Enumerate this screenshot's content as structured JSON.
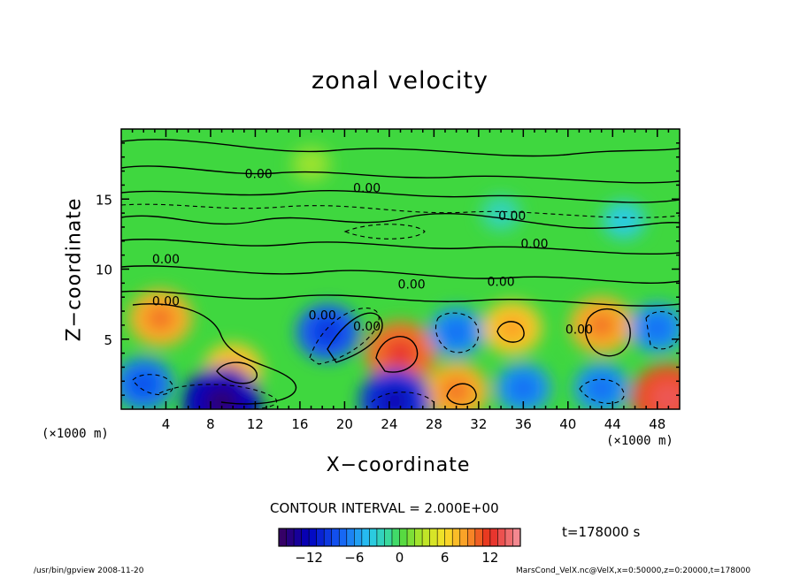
{
  "chart_data": {
    "type": "heatmap",
    "title": "zonal velocity",
    "xlabel": "X−coordinate",
    "ylabel": "Z−coordinate",
    "x_unit": "(×1000 m)",
    "y_unit": "(×1000 m)",
    "xlim": [
      0,
      50
    ],
    "ylim": [
      0,
      20
    ],
    "x_ticks": [
      4,
      8,
      12,
      16,
      20,
      24,
      28,
      32,
      36,
      40,
      44,
      48
    ],
    "y_ticks": [
      5,
      10,
      15
    ],
    "contour_labels": [
      "0.00",
      "0.00",
      "0.00",
      "0.00",
      "0.00",
      "0.00",
      "0.00",
      "0.00",
      "0.00",
      "0.00",
      "0.00"
    ],
    "contour_interval": "CONTOUR INTERVAL = 2.000E+00",
    "colorbar": {
      "ticks": [
        -12,
        -6,
        0,
        6,
        12
      ],
      "range": [
        -16,
        16
      ]
    },
    "time_label": "t=178000 s",
    "features": [
      {
        "x": 3.5,
        "z": 6.5,
        "value": 8
      },
      {
        "x": 10,
        "z": 2.8,
        "value": 7
      },
      {
        "x": 18.5,
        "z": 5.5,
        "value": -8
      },
      {
        "x": 25,
        "z": 4,
        "value": 10
      },
      {
        "x": 30,
        "z": 1.3,
        "value": 8
      },
      {
        "x": 30,
        "z": 5.5,
        "value": -6
      },
      {
        "x": 35,
        "z": 5.8,
        "value": 7
      },
      {
        "x": 43,
        "z": 6,
        "value": 8
      },
      {
        "x": 48,
        "z": 5.8,
        "value": -6
      },
      {
        "x": 2,
        "z": 1.8,
        "value": -7
      },
      {
        "x": 9,
        "z": 0.5,
        "value": -12
      },
      {
        "x": 24.5,
        "z": 0.6,
        "value": -10
      },
      {
        "x": 36,
        "z": 1.5,
        "value": -6
      },
      {
        "x": 43,
        "z": 1.5,
        "value": -6
      },
      {
        "x": 49,
        "z": 0.8,
        "value": 11
      },
      {
        "x": 17,
        "z": 17.5,
        "value": 2
      },
      {
        "x": 34,
        "z": 14,
        "value": -2
      },
      {
        "x": 45,
        "z": 13.5,
        "value": -3
      }
    ]
  },
  "footer": {
    "left": "/usr/bin/gpview   2008-11-20",
    "right": "MarsCond_VelX.nc@VelX,x=0:50000,z=0:20000,t=178000"
  }
}
